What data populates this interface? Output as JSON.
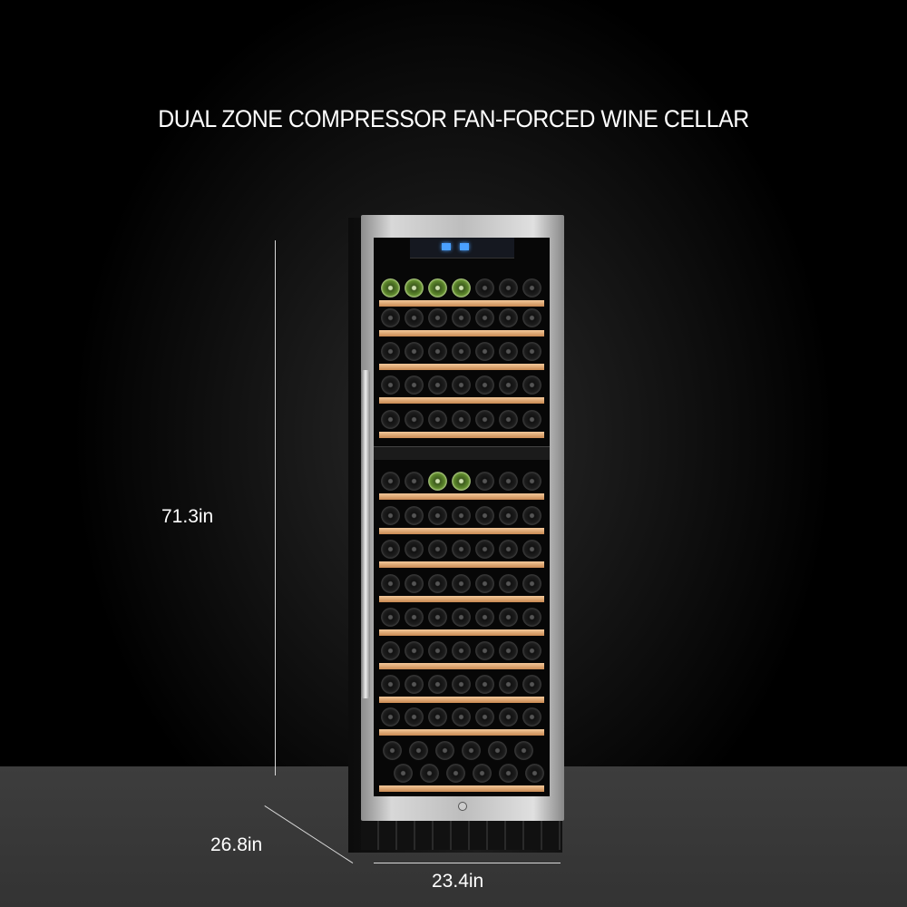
{
  "title": "DUAL ZONE COMPRESSOR FAN-FORCED WINE CELLAR",
  "dimensions": {
    "height": "71.3in",
    "depth": "26.8in",
    "width": "23.4in"
  },
  "colors": {
    "background": "#000000",
    "floor": "#3a3a3a",
    "shelf_wood": "#e0a56e",
    "display": "#4aa0ff"
  }
}
